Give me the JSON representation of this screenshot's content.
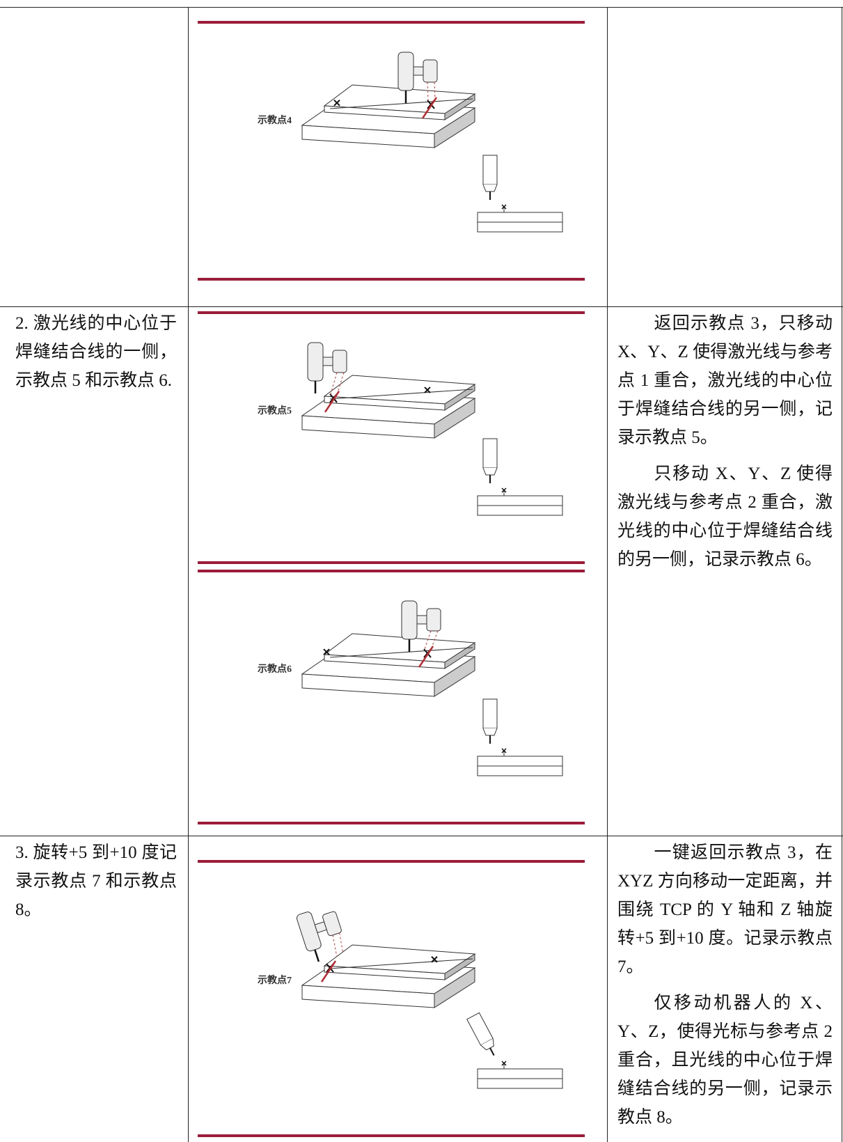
{
  "table": {
    "rows": [
      {
        "figures": [
          {
            "label": "示教点4"
          }
        ]
      },
      {
        "step": "2. 激光线的中心位于焊缝结合线的一侧，示教点 5 和示教点 6.",
        "figures": [
          {
            "label": "示教点5"
          },
          {
            "label": "示教点6"
          }
        ],
        "notes": [
          "返回示教点 3，只移动 X、Y、Z 使得激光线与参考点 1 重合，激光线的中心位于焊缝结合线的另一侧，记录示教点 5。",
          "只移动 X、Y、Z 使得激光线与参考点 2 重合，激光线的中心位于焊缝结合线的另一侧，记录示教点 6。"
        ]
      },
      {
        "step": "3. 旋转+5 到+10 度记录示教点 7 和示教点 8。",
        "figures": [
          {
            "label": "示教点7"
          }
        ],
        "notes": [
          "一键返回示教点 3，在 XYZ 方向移动一定距离，并围绕 TCP 的 Y 轴和 Z 轴旋转+5 到+10 度。记录示教点 7。",
          "仅移动机器人的 X、Y、Z，使得光标与参考点 2 重合，且光线的中心位于焊缝结合线的另一侧，记录示教点 8。"
        ]
      }
    ]
  }
}
